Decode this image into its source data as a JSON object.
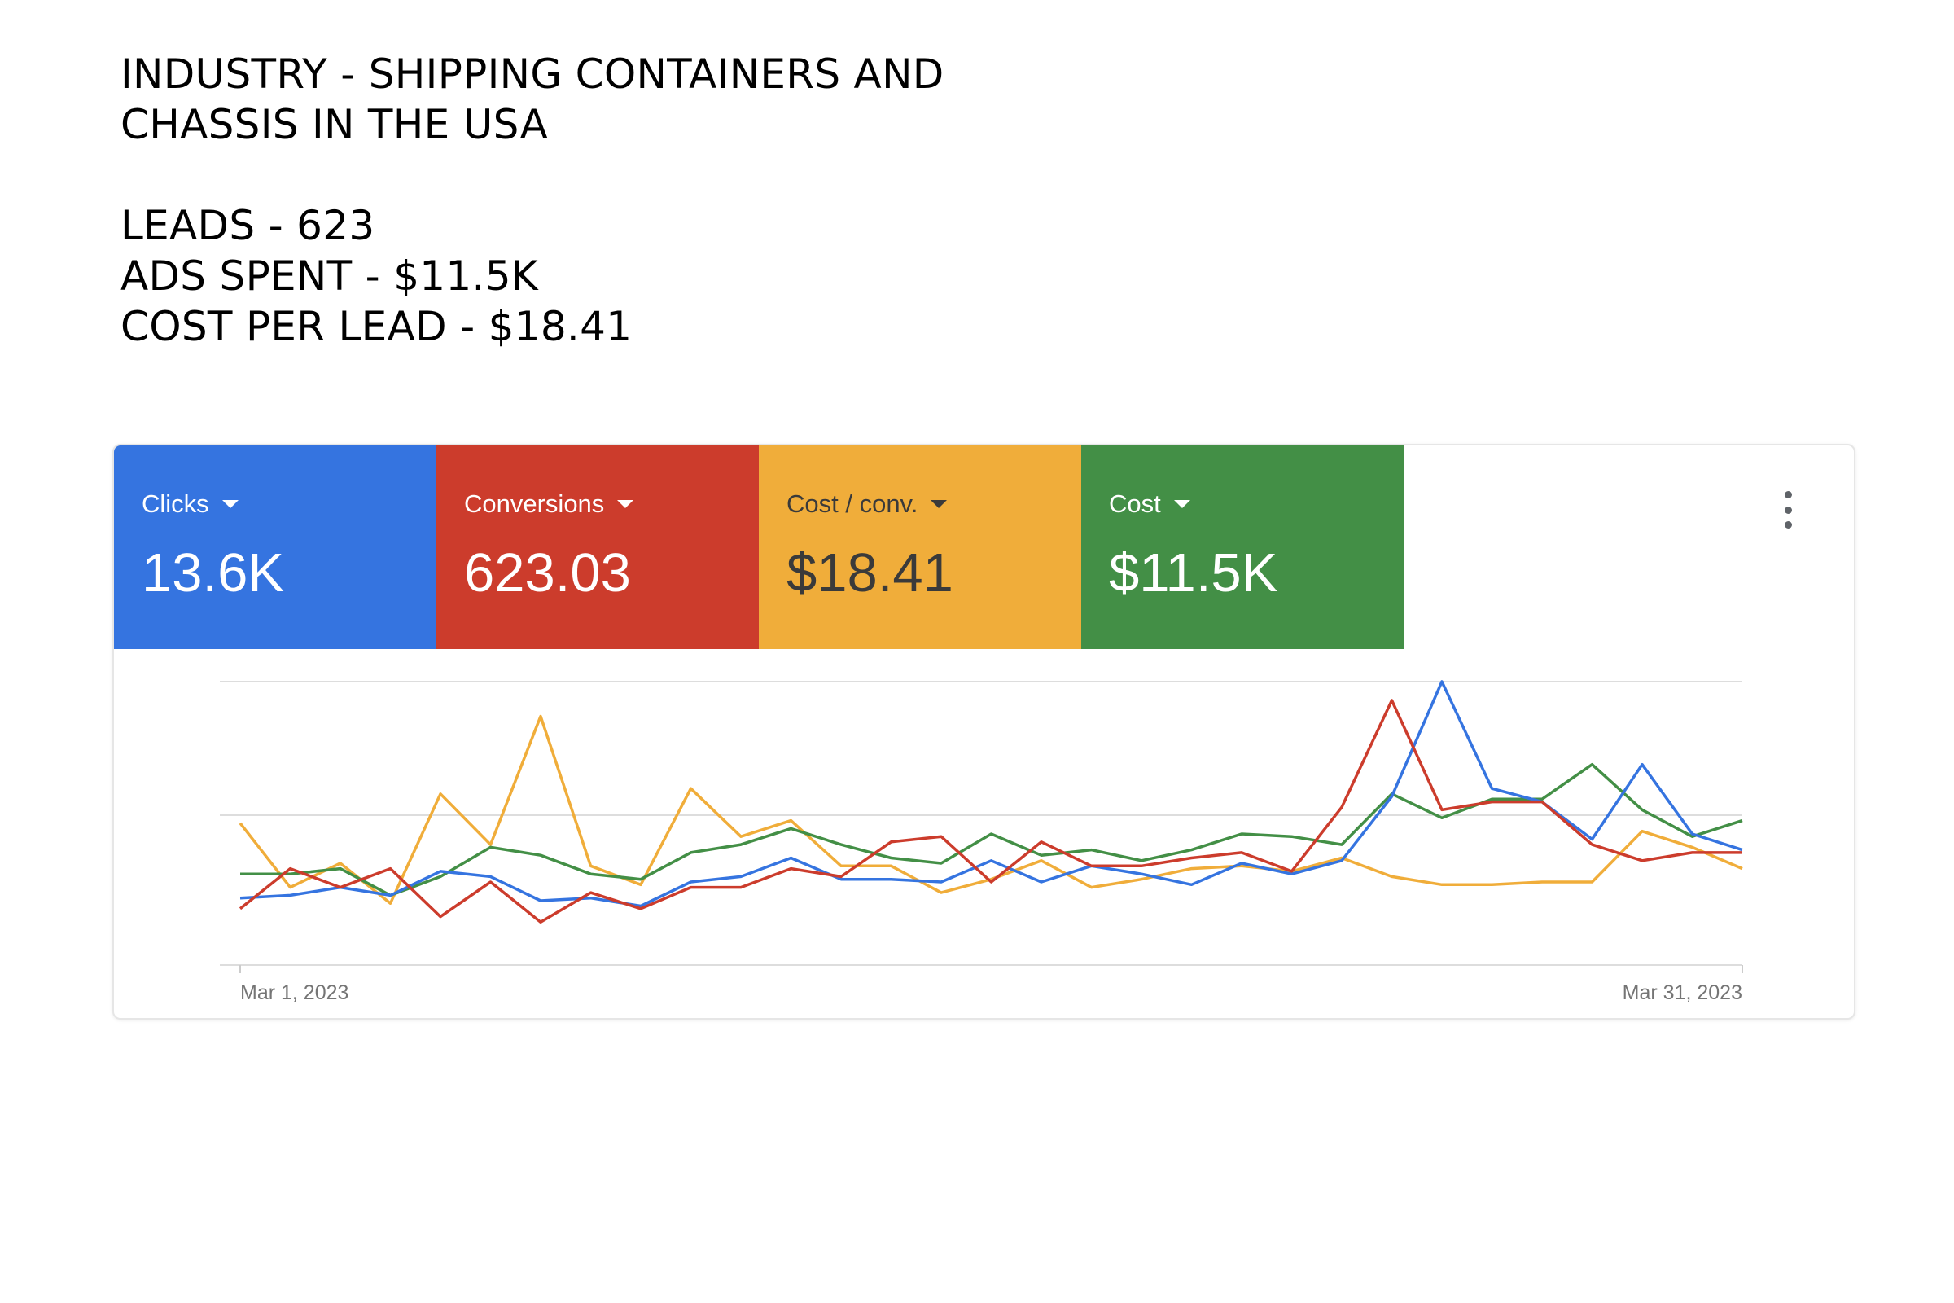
{
  "header": {
    "line1": "INDUSTRY - SHIPPING CONTAINERS AND",
    "line2": "CHASSIS IN THE USA",
    "leads": "LEADS - 623",
    "ads_spent": "ADS SPENT - $11.5K",
    "cost_per_lead": "COST PER LEAD - $18.41"
  },
  "metrics": [
    {
      "label": "Clicks",
      "value": "13.6K",
      "color": "#3574e0"
    },
    {
      "label": "Conversions",
      "value": "623.03",
      "color": "#cc3c2c"
    },
    {
      "label": "Cost / conv.",
      "value": "$18.41",
      "color": "#f0ad3a"
    },
    {
      "label": "Cost",
      "value": "$11.5K",
      "color": "#438f46"
    }
  ],
  "more_icon": "more-vert-icon",
  "chart_data": {
    "type": "line",
    "x_start_label": "Mar 1, 2023",
    "x_end_label": "Mar 31, 2023",
    "x": [
      "2023-03-01",
      "2023-03-02",
      "2023-03-03",
      "2023-03-04",
      "2023-03-05",
      "2023-03-06",
      "2023-03-07",
      "2023-03-08",
      "2023-03-09",
      "2023-03-10",
      "2023-03-11",
      "2023-03-12",
      "2023-03-13",
      "2023-03-14",
      "2023-03-15",
      "2023-03-16",
      "2023-03-17",
      "2023-03-18",
      "2023-03-19",
      "2023-03-20",
      "2023-03-21",
      "2023-03-22",
      "2023-03-23",
      "2023-03-24",
      "2023-03-25",
      "2023-03-26",
      "2023-03-27",
      "2023-03-28",
      "2023-03-29",
      "2023-03-30",
      "2023-03-31"
    ],
    "ylim": [
      0,
      100
    ],
    "gridlines": [
      50,
      100
    ],
    "y_tick_labels": "none",
    "grid": true,
    "series": [
      {
        "color": "#f0ad3a",
        "values": [
          47,
          23,
          32,
          17,
          58,
          39,
          87,
          31,
          24,
          60,
          42,
          48,
          31,
          31,
          21,
          26,
          33,
          23,
          26,
          30,
          31,
          29,
          34,
          27,
          24,
          24,
          25,
          25,
          44,
          38,
          30
        ]
      },
      {
        "color": "#438f46",
        "values": [
          28,
          28,
          30,
          20,
          27,
          38,
          35,
          28,
          26,
          36,
          39,
          45,
          39,
          34,
          32,
          43,
          35,
          37,
          33,
          37,
          43,
          42,
          39,
          58,
          49,
          56,
          56,
          69,
          52,
          42,
          48
        ]
      },
      {
        "color": "#3574e0",
        "values": [
          19,
          20,
          23,
          20,
          29,
          27,
          18,
          19,
          16,
          25,
          27,
          34,
          26,
          26,
          25,
          33,
          25,
          31,
          28,
          24,
          32,
          28,
          33,
          57,
          100,
          60,
          55,
          41,
          69,
          43,
          37
        ]
      },
      {
        "color": "#cc3c2c",
        "values": [
          15,
          30,
          23,
          30,
          12,
          25,
          10,
          21,
          15,
          23,
          23,
          30,
          27,
          40,
          42,
          25,
          40,
          31,
          31,
          34,
          36,
          29,
          53,
          93,
          52,
          55,
          55,
          39,
          33,
          36,
          36
        ]
      }
    ]
  }
}
